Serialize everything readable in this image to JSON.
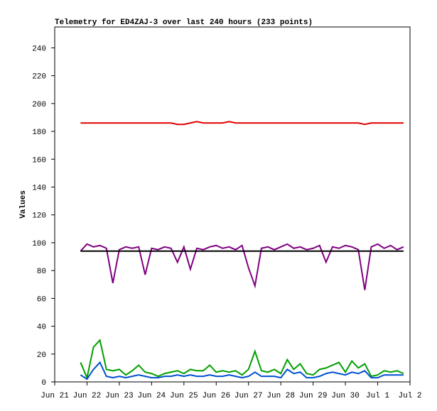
{
  "chart_data": {
    "type": "line",
    "title": "Telemetry for ED4ZAJ-3 over last 240 hours (233 points)",
    "ylabel": "Values",
    "x": [
      0.8,
      1,
      1.2,
      1.4,
      1.6,
      1.8,
      2,
      2.2,
      2.4,
      2.6,
      2.8,
      3,
      3.2,
      3.4,
      3.6,
      3.8,
      4,
      4.2,
      4.4,
      4.6,
      4.8,
      5,
      5.2,
      5.4,
      5.6,
      5.8,
      6,
      6.2,
      6.4,
      6.6,
      6.8,
      7,
      7.2,
      7.4,
      7.6,
      7.8,
      8,
      8.2,
      8.4,
      8.6,
      8.8,
      9,
      9.2,
      9.4,
      9.6,
      9.8,
      10,
      10.2,
      10.4,
      10.6,
      10.8
    ],
    "xlim": [
      0,
      11
    ],
    "xticks": [
      {
        "value": 0,
        "label": "Jun 21"
      },
      {
        "value": 1,
        "label": "Jun 22"
      },
      {
        "value": 2,
        "label": "Jun 23"
      },
      {
        "value": 3,
        "label": "Jun 24"
      },
      {
        "value": 4,
        "label": "Jun 25"
      },
      {
        "value": 5,
        "label": "Jun 26"
      },
      {
        "value": 6,
        "label": "Jun 27"
      },
      {
        "value": 7,
        "label": "Jun 28"
      },
      {
        "value": 8,
        "label": "Jun 29"
      },
      {
        "value": 9,
        "label": "Jun 30"
      },
      {
        "value": 10,
        "label": "Jul 1"
      },
      {
        "value": 11,
        "label": "Jul 2"
      }
    ],
    "ylim": [
      0,
      255
    ],
    "yticks": [
      0,
      20,
      40,
      60,
      80,
      100,
      120,
      140,
      160,
      180,
      200,
      220,
      240
    ],
    "grid": false,
    "series": [
      {
        "color": "#e00000",
        "values": [
          186,
          186,
          186,
          186,
          186,
          186,
          186,
          186,
          186,
          186,
          186,
          186,
          186,
          186,
          186,
          185,
          185,
          186,
          187,
          186,
          186,
          186,
          186,
          187,
          186,
          186,
          186,
          186,
          186,
          186,
          186,
          186,
          186,
          186,
          186,
          186,
          186,
          186,
          186,
          186,
          186,
          186,
          186,
          186,
          185,
          186,
          186,
          186,
          186,
          186,
          186
        ]
      },
      {
        "color": "#800080",
        "values": [
          94,
          99,
          97,
          98,
          96,
          71,
          95,
          97,
          96,
          97,
          77,
          96,
          95,
          97,
          96,
          86,
          97,
          81,
          96,
          95,
          97,
          98,
          96,
          97,
          95,
          98,
          82,
          69,
          96,
          97,
          95,
          97,
          99,
          96,
          97,
          95,
          96,
          98,
          86,
          97,
          96,
          98,
          97,
          95,
          66,
          97,
          99,
          96,
          98,
          95,
          97
        ]
      },
      {
        "color": "#000000",
        "values": [
          94,
          94,
          94,
          94,
          94,
          94,
          94,
          94,
          94,
          94,
          94,
          94,
          94,
          94,
          94,
          94,
          94,
          94,
          94,
          94,
          94,
          94,
          94,
          94,
          94,
          94,
          94,
          94,
          94,
          94,
          94,
          94,
          94,
          94,
          94,
          94,
          94,
          94,
          94,
          94,
          94,
          94,
          94,
          94,
          94,
          94,
          94,
          94,
          94,
          94,
          94
        ]
      },
      {
        "color": "#00a000",
        "values": [
          14,
          3,
          25,
          30,
          9,
          8,
          9,
          5,
          8,
          12,
          7,
          6,
          4,
          6,
          7,
          8,
          6,
          9,
          8,
          8,
          12,
          7,
          8,
          7,
          8,
          5,
          9,
          22,
          8,
          7,
          9,
          6,
          16,
          9,
          13,
          6,
          5,
          9,
          10,
          12,
          14,
          7,
          15,
          10,
          13,
          4,
          5,
          8,
          7,
          8,
          6
        ]
      },
      {
        "color": "#0050d0",
        "values": [
          5,
          2,
          9,
          14,
          4,
          3,
          4,
          3,
          4,
          5,
          4,
          3,
          3,
          4,
          4,
          5,
          4,
          5,
          4,
          4,
          5,
          4,
          4,
          5,
          4,
          3,
          4,
          7,
          4,
          4,
          4,
          3,
          9,
          6,
          7,
          3,
          3,
          4,
          6,
          7,
          6,
          5,
          7,
          6,
          8,
          3,
          3,
          5,
          5,
          5,
          5
        ]
      }
    ]
  }
}
